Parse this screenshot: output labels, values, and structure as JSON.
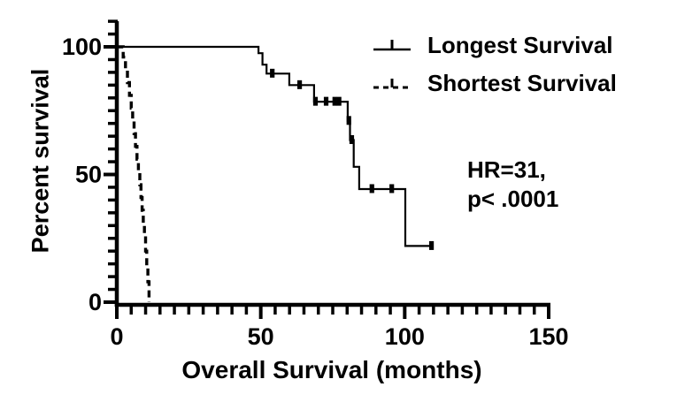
{
  "colors": {
    "ink": "#000000",
    "background": "#ffffff"
  },
  "chart_data": {
    "type": "line",
    "subtype": "kaplan-meier-step",
    "title": "",
    "xlabel": "Overall Survival (months)",
    "ylabel": "Percent survival",
    "xlim": [
      0,
      150
    ],
    "ylim": [
      0,
      110
    ],
    "x_major_ticks": [
      0,
      50,
      100,
      150
    ],
    "x_minor_tick_interval": 5,
    "y_major_ticks": [
      0,
      50,
      100
    ],
    "y_minor_tick_interval": 5,
    "grid": false,
    "legend_position": "top-right-inside",
    "series": [
      {
        "name": "Longest Survival",
        "line_style": "solid",
        "color": "#000000",
        "points": [
          [
            0,
            100
          ],
          [
            49.2,
            100
          ],
          [
            49.2,
            97.5
          ],
          [
            50.6,
            97.5
          ],
          [
            50.6,
            93
          ],
          [
            52,
            93
          ],
          [
            52,
            89.5
          ],
          [
            59.9,
            89.5
          ],
          [
            59.9,
            85
          ],
          [
            68.5,
            85
          ],
          [
            68.5,
            78.5
          ],
          [
            80.2,
            78.5
          ],
          [
            80.2,
            71
          ],
          [
            81,
            71
          ],
          [
            81,
            63.5
          ],
          [
            82.3,
            63.5
          ],
          [
            82.3,
            53
          ],
          [
            84.2,
            53
          ],
          [
            84.2,
            44.3
          ],
          [
            100.2,
            44.3
          ],
          [
            100.2,
            22
          ],
          [
            110,
            22
          ]
        ],
        "censor_marks": [
          [
            54,
            89.5
          ],
          [
            63.5,
            85
          ],
          [
            69,
            78.5
          ],
          [
            72.7,
            78.5
          ],
          [
            75.7,
            78.5
          ],
          [
            77.2,
            78.5
          ],
          [
            80.6,
            71
          ],
          [
            81.6,
            63.5
          ],
          [
            88.6,
            44.3
          ],
          [
            95.5,
            44.3
          ],
          [
            109.3,
            22
          ]
        ]
      },
      {
        "name": "Shortest Survival",
        "line_style": "dashed",
        "color": "#000000",
        "points": [
          [
            0,
            100
          ],
          [
            2.2,
            100
          ],
          [
            2.2,
            96
          ],
          [
            3,
            96
          ],
          [
            3,
            91
          ],
          [
            3.7,
            91
          ],
          [
            3.7,
            86
          ],
          [
            4.4,
            86
          ],
          [
            4.4,
            81
          ],
          [
            5,
            81
          ],
          [
            5,
            76
          ],
          [
            5.5,
            76
          ],
          [
            5.5,
            71
          ],
          [
            6,
            71
          ],
          [
            6,
            66
          ],
          [
            6.5,
            66
          ],
          [
            6.5,
            61
          ],
          [
            7,
            61
          ],
          [
            7,
            56
          ],
          [
            7.5,
            56
          ],
          [
            7.5,
            51
          ],
          [
            8,
            51
          ],
          [
            8,
            46
          ],
          [
            8.4,
            46
          ],
          [
            8.4,
            41
          ],
          [
            8.8,
            41
          ],
          [
            8.8,
            36
          ],
          [
            9.2,
            36
          ],
          [
            9.2,
            31
          ],
          [
            9.6,
            31
          ],
          [
            9.6,
            26
          ],
          [
            10,
            26
          ],
          [
            10,
            20
          ],
          [
            10.4,
            20
          ],
          [
            10.4,
            14
          ],
          [
            10.8,
            14
          ],
          [
            10.8,
            8
          ],
          [
            11.2,
            8
          ],
          [
            11.2,
            0
          ]
        ],
        "censor_marks": []
      }
    ],
    "annotation": {
      "line1": "HR=31,",
      "line2": "p< .0001"
    }
  }
}
